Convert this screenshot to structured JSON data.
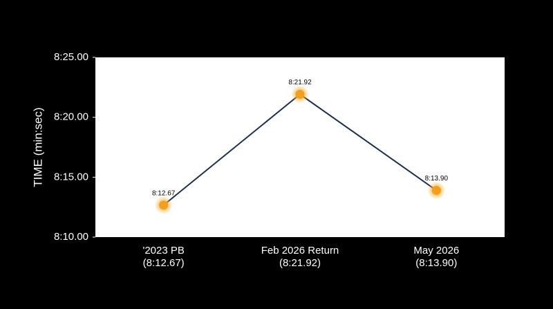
{
  "chart_data": {
    "type": "line",
    "y_label": "TIME (min:sec)",
    "categories": [
      "'2023 PB\n(8:12.67)",
      "Feb 2026 Return\n(8:21.92)",
      "May 2026\n(8:13.90)"
    ],
    "series": [
      {
        "color": "#1c2f4f",
        "marker_color": "#f0a01e",
        "values": [
          492.67,
          501.92,
          493.9
        ],
        "value_labels": [
          "8:12.67",
          "8:21.92",
          "8:13.90"
        ]
      }
    ],
    "ylim": [
      490,
      505
    ],
    "yticks": [
      {
        "value": 490,
        "label": "8:10.00"
      },
      {
        "value": 495,
        "label": "8:15.00"
      },
      {
        "value": 500,
        "label": "8:20.00"
      },
      {
        "value": 505,
        "label": "8:25.00"
      }
    ],
    "grid": false
  }
}
